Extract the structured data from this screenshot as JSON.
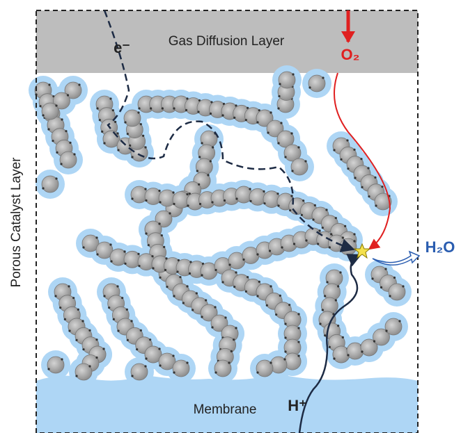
{
  "labels": {
    "gas_diffusion_layer": "Gas Diffusion Layer",
    "electron": "e⁻",
    "oxygen": "O₂",
    "catalyst_layer": "Porous Catalyst Layer",
    "water": "H₂O",
    "membrane": "Membrane",
    "proton": "H⁺"
  }
}
